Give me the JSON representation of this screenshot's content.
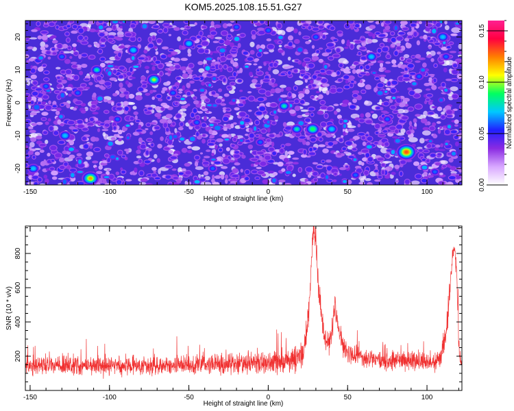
{
  "title": "KOM5.2025.108.15.51.G27",
  "chart_data": [
    {
      "type": "heatmap",
      "xlabel": "Height of straight line (km)",
      "ylabel": "Frequency (Hz)",
      "xlim": [
        -153,
        122
      ],
      "ylim": [
        -25,
        25
      ],
      "xticks": [
        -150,
        -100,
        -50,
        0,
        50,
        100
      ],
      "xtick_labels": [
        "-150",
        "-100",
        "-50",
        "0",
        "50",
        "100"
      ],
      "yticks": [
        -20,
        -10,
        0,
        10,
        20
      ],
      "ytick_labels": [
        "-20",
        "-10",
        "0",
        "10",
        "20"
      ],
      "colorbar": {
        "label": "Normalized spectral amplitude",
        "range": [
          0,
          0.16
        ],
        "ticks": [
          0,
          0.05,
          0.1,
          0.15
        ],
        "tick_labels": [
          "0.00",
          "0.05",
          "0.10",
          "0.15"
        ],
        "colors": [
          "#ffffff",
          "#d8a8ff",
          "#8a2be2",
          "#2020ff",
          "#00c8ff",
          "#00ff60",
          "#ffff00",
          "#ff8000",
          "#ff0040",
          "#ff2090"
        ]
      },
      "background_level": 0.015,
      "hotspots": [
        {
          "x": 28,
          "y": -8,
          "value": 0.09
        },
        {
          "x": 18,
          "y": -8,
          "value": 0.08
        },
        {
          "x": 87,
          "y": -15,
          "value": 0.13
        },
        {
          "x": -112,
          "y": -23,
          "value": 0.12
        },
        {
          "x": -72,
          "y": 7,
          "value": 0.1
        },
        {
          "x": -108,
          "y": 10,
          "value": 0.08
        },
        {
          "x": 10,
          "y": -1,
          "value": 0.08
        },
        {
          "x": 40,
          "y": -8,
          "value": 0.07
        },
        {
          "x": -128,
          "y": -10,
          "value": 0.07
        },
        {
          "x": -148,
          "y": -20,
          "value": 0.07
        },
        {
          "x": -50,
          "y": 18,
          "value": 0.07
        },
        {
          "x": 65,
          "y": 14,
          "value": 0.07
        },
        {
          "x": 110,
          "y": 20,
          "value": 0.07
        },
        {
          "x": -85,
          "y": 16,
          "value": 0.07
        },
        {
          "x": 0,
          "y": 22,
          "value": 0.06
        },
        {
          "x": -20,
          "y": 23,
          "value": 0.06
        },
        {
          "x": 112,
          "y": 14,
          "value": 0.06
        },
        {
          "x": -120,
          "y": 3,
          "value": 0.06
        },
        {
          "x": -95,
          "y": -5,
          "value": 0.06
        },
        {
          "x": -35,
          "y": -20,
          "value": 0.06
        },
        {
          "x": 55,
          "y": -22,
          "value": 0.06
        },
        {
          "x": -140,
          "y": 5,
          "value": 0.06
        },
        {
          "x": 75,
          "y": -5,
          "value": 0.06
        },
        {
          "x": 105,
          "y": -21,
          "value": 0.06
        },
        {
          "x": -60,
          "y": 3,
          "value": 0.06
        },
        {
          "x": 30,
          "y": 20,
          "value": 0.06
        },
        {
          "x": -5,
          "y": -12,
          "value": 0.06
        },
        {
          "x": 95,
          "y": 8,
          "value": 0.06
        },
        {
          "x": -130,
          "y": 14,
          "value": 0.06
        },
        {
          "x": -45,
          "y": -6,
          "value": 0.06
        }
      ]
    },
    {
      "type": "line",
      "xlabel": "Height of straight line (km)",
      "ylabel": "SNR (10 * v/v)",
      "xlim": [
        -153,
        122
      ],
      "ylim": [
        0,
        960
      ],
      "xticks": [
        -150,
        -100,
        -50,
        0,
        50,
        100
      ],
      "xtick_labels": [
        "-150",
        "-100",
        "-50",
        "0",
        "50",
        "100"
      ],
      "yticks": [
        200,
        400,
        600,
        800
      ],
      "ytick_labels": [
        "200",
        "400",
        "600",
        "800"
      ],
      "series_color": "#f03030",
      "envelope": {
        "x": [
          -153,
          -140,
          -120,
          -100,
          -80,
          -60,
          -40,
          -20,
          -10,
          0,
          10,
          18,
          22,
          25,
          27,
          28,
          29,
          30,
          32,
          35,
          38,
          40,
          42,
          44,
          47,
          50,
          60,
          70,
          80,
          90,
          100,
          108,
          112,
          114,
          116,
          117,
          118,
          119,
          120,
          121,
          122
        ],
        "mean": [
          145,
          145,
          140,
          150,
          140,
          145,
          150,
          155,
          160,
          165,
          175,
          185,
          210,
          420,
          700,
          880,
          940,
          860,
          560,
          330,
          260,
          360,
          480,
          360,
          260,
          225,
          190,
          180,
          175,
          170,
          165,
          180,
          320,
          520,
          760,
          820,
          780,
          600,
          280,
          170,
          150
        ],
        "noise": [
          80,
          85,
          85,
          85,
          80,
          80,
          85,
          90,
          95,
          100,
          105,
          115,
          120,
          130,
          120,
          90,
          70,
          90,
          110,
          110,
          100,
          110,
          110,
          100,
          95,
          90,
          85,
          85,
          80,
          80,
          80,
          90,
          110,
          120,
          100,
          80,
          90,
          110,
          100,
          70,
          60
        ]
      }
    }
  ]
}
